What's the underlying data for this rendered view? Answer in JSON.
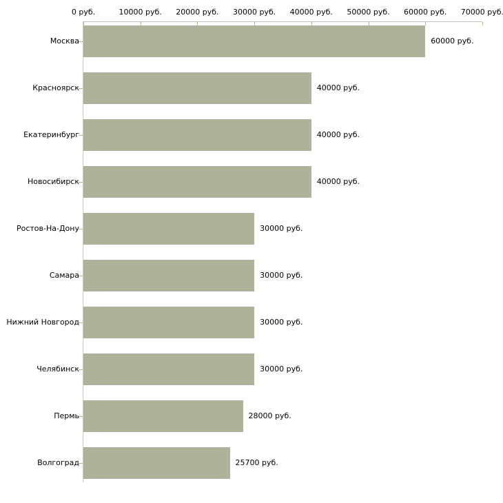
{
  "chart_data": {
    "type": "bar",
    "orientation": "horizontal",
    "title": "",
    "xlabel": "",
    "ylabel": "",
    "grid": false,
    "legend": null,
    "categories": [
      "Москва",
      "Красноярск",
      "Екатеринбург",
      "Новосибирск",
      "Ростов-На-Дону",
      "Самара",
      "Нижний Новгород",
      "Челябинск",
      "Пермь",
      "Волгоград"
    ],
    "values": [
      60000,
      40000,
      40000,
      40000,
      30000,
      30000,
      30000,
      30000,
      28000,
      25700
    ],
    "value_labels": [
      "60000 руб.",
      "40000 руб.",
      "40000 руб.",
      "40000 руб.",
      "30000 руб.",
      "30000 руб.",
      "30000 руб.",
      "30000 руб.",
      "28000 руб.",
      "25700 руб."
    ],
    "x_axis": {
      "position": "top",
      "min": 0,
      "max": 70000,
      "ticks": [
        0,
        10000,
        20000,
        30000,
        40000,
        50000,
        60000,
        70000
      ],
      "tick_labels": [
        "0 руб.",
        "10000 руб.",
        "20000 руб.",
        "30000 руб.",
        "40000 руб.",
        "50000 руб.",
        "60000 руб.",
        "70000 руб."
      ]
    },
    "colors": {
      "bar": "#aeb29b",
      "axis_line": "#c6c6c6",
      "tick_mark": "#b9ba8e",
      "text": "#000000",
      "background": "#ffffff"
    }
  }
}
